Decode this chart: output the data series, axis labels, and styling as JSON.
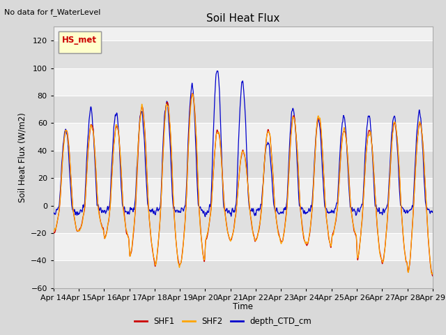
{
  "title": "Soil Heat Flux",
  "ylabel": "Soil Heat Flux (W/m2)",
  "xlabel": "Time",
  "top_note": "No data for f_WaterLevel",
  "legend_box_label": "HS_met",
  "ylim": [
    -60,
    130
  ],
  "yticks": [
    -60,
    -40,
    -20,
    0,
    20,
    40,
    60,
    80,
    100,
    120
  ],
  "xtick_labels": [
    "Apr 14",
    "Apr 15",
    "Apr 16",
    "Apr 17",
    "Apr 18",
    "Apr 19",
    "Apr 20",
    "Apr 21",
    "Apr 22",
    "Apr 23",
    "Apr 24",
    "Apr 25",
    "Apr 26",
    "Apr 27",
    "Apr 28",
    "Apr 29"
  ],
  "line_colors": {
    "SHF1": "#cc0000",
    "SHF2": "#ffa500",
    "depth_CTD_cm": "#0000cc"
  },
  "bg_color": "#d9d9d9",
  "plot_bg_color": "#f0f0f0",
  "grid_color": "#ffffff",
  "alt_band_color": "#e0e0e0"
}
